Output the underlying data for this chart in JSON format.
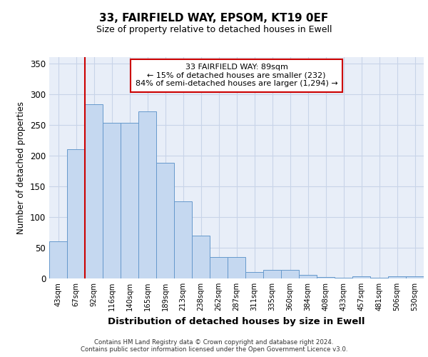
{
  "title1": "33, FAIRFIELD WAY, EPSOM, KT19 0EF",
  "title2": "Size of property relative to detached houses in Ewell",
  "xlabel": "Distribution of detached houses by size in Ewell",
  "ylabel": "Number of detached properties",
  "categories": [
    "43sqm",
    "67sqm",
    "92sqm",
    "116sqm",
    "140sqm",
    "165sqm",
    "189sqm",
    "213sqm",
    "238sqm",
    "262sqm",
    "287sqm",
    "311sqm",
    "335sqm",
    "360sqm",
    "384sqm",
    "408sqm",
    "433sqm",
    "457sqm",
    "481sqm",
    "506sqm",
    "530sqm"
  ],
  "values": [
    60,
    210,
    283,
    253,
    253,
    272,
    188,
    126,
    70,
    35,
    35,
    10,
    14,
    14,
    6,
    2,
    1,
    3,
    1,
    4,
    4
  ],
  "bar_color": "#c5d8f0",
  "bar_edge_color": "#6699cc",
  "grid_color": "#c8d4e8",
  "background_color": "#e8eef8",
  "vline_x_index": 2,
  "vline_color": "#cc0000",
  "annotation_text": "33 FAIRFIELD WAY: 89sqm\n← 15% of detached houses are smaller (232)\n84% of semi-detached houses are larger (1,294) →",
  "annotation_box_color": "#ffffff",
  "annotation_box_edge_color": "#cc0000",
  "footer_text": "Contains HM Land Registry data © Crown copyright and database right 2024.\nContains public sector information licensed under the Open Government Licence v3.0.",
  "ylim": [
    0,
    360
  ],
  "yticks": [
    0,
    50,
    100,
    150,
    200,
    250,
    300,
    350
  ]
}
